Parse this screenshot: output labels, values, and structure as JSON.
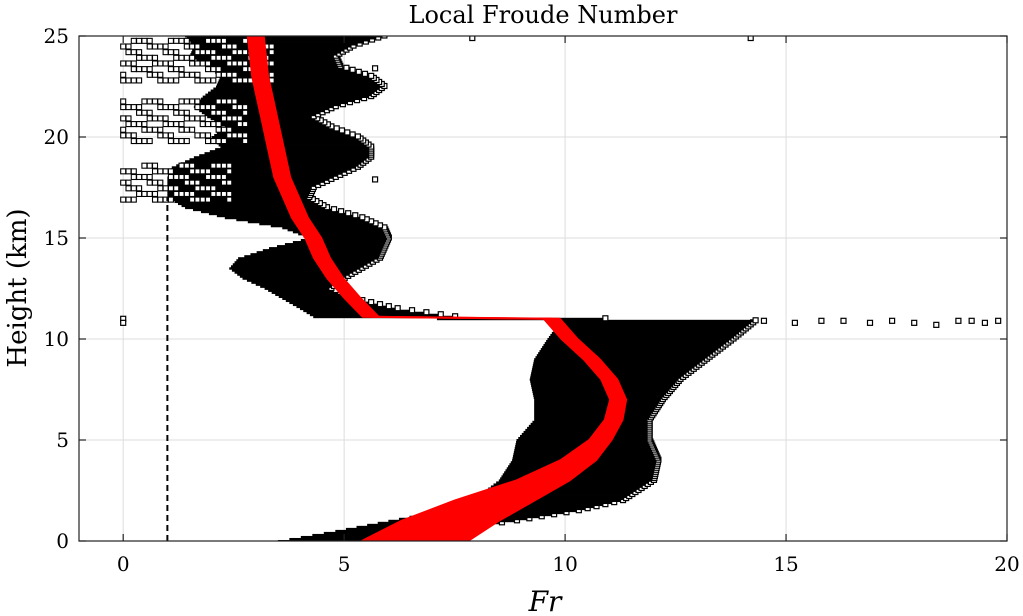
{
  "chart_data": {
    "type": "scatter",
    "title": "Local Froude Number",
    "xlabel": "Fr",
    "ylabel": "Height (km)",
    "xlim": [
      -1,
      20
    ],
    "ylim": [
      0,
      25
    ],
    "xticks": [
      0,
      5,
      10,
      15,
      20
    ],
    "yticks": [
      0,
      5,
      10,
      15,
      20,
      25
    ],
    "grid": true,
    "colors": {
      "markers": "#000000",
      "mean_profile": "#ff0000",
      "reference_line": "#000000"
    },
    "reference_line": {
      "x": 1,
      "style": "dashed"
    },
    "series": [
      {
        "marker": "open-square",
        "envelope_low": {
          "y": [
            0,
            0.5,
            1,
            1.5,
            2,
            3,
            4,
            5,
            6,
            7,
            8,
            9,
            10,
            10.9,
            11.1,
            11.5,
            12,
            12.5,
            13,
            13.5,
            14,
            14.5,
            15,
            15.5,
            16,
            16.5,
            17,
            17.5,
            18,
            18.5,
            19,
            19.5,
            20,
            20.5,
            21,
            21.5,
            22,
            22.5,
            23,
            23.5,
            24,
            24.5,
            25
          ],
          "x": [
            3.5,
            4.8,
            6.0,
            7.2,
            7.9,
            8.5,
            8.8,
            8.9,
            9.3,
            9.3,
            9.2,
            9.3,
            9.6,
            9.9,
            4.3,
            4.0,
            3.6,
            3.2,
            2.7,
            2.4,
            2.6,
            3.3,
            4.2,
            3.6,
            2.3,
            1.4,
            1.0,
            1.0,
            1.0,
            1.1,
            1.6,
            2.2,
            2.0,
            2.3,
            1.9,
            1.6,
            1.8,
            2.1,
            2.2,
            1.9,
            1.5,
            1.6,
            1.4
          ]
        },
        "envelope_high": {
          "y": [
            0,
            0.5,
            1,
            1.5,
            2,
            3,
            4,
            5,
            6,
            7,
            8,
            9,
            10,
            10.9,
            11.1,
            11.5,
            12,
            12.5,
            13,
            13.5,
            14,
            14.5,
            15,
            15.5,
            16,
            16.5,
            17,
            17.5,
            18,
            18.5,
            19,
            19.5,
            20,
            20.5,
            21,
            21.5,
            22,
            22.5,
            23,
            23.5,
            24,
            24.5,
            25
          ],
          "x": [
            5.8,
            7.2,
            8.9,
            10.3,
            11.3,
            12.0,
            12.1,
            11.9,
            11.9,
            12.2,
            12.6,
            13.2,
            13.8,
            14.3,
            7.5,
            6.2,
            5.2,
            4.7,
            5.0,
            5.4,
            5.8,
            5.9,
            6.0,
            5.9,
            5.4,
            4.6,
            4.2,
            4.3,
            4.8,
            5.3,
            5.6,
            5.6,
            5.3,
            4.7,
            4.3,
            4.8,
            5.6,
            5.9,
            5.6,
            4.9,
            4.8,
            5.2,
            5.9
          ]
        },
        "outliers": [
          {
            "x": 14.5,
            "y": 10.9
          },
          {
            "x": 15.2,
            "y": 10.8
          },
          {
            "x": 15.8,
            "y": 10.9
          },
          {
            "x": 16.3,
            "y": 10.9
          },
          {
            "x": 16.9,
            "y": 10.8
          },
          {
            "x": 17.4,
            "y": 10.9
          },
          {
            "x": 17.9,
            "y": 10.8
          },
          {
            "x": 18.4,
            "y": 10.7
          },
          {
            "x": 18.9,
            "y": 10.9
          },
          {
            "x": 19.2,
            "y": 10.9
          },
          {
            "x": 19.5,
            "y": 10.8
          },
          {
            "x": 19.8,
            "y": 10.9
          },
          {
            "x": 0,
            "y": 11.0
          },
          {
            "x": 0,
            "y": 10.8
          },
          {
            "x": 7.9,
            "y": 24.9
          },
          {
            "x": 14.2,
            "y": 24.9
          },
          {
            "x": 5.7,
            "y": 23.4
          },
          {
            "x": 5.7,
            "y": 17.9
          }
        ],
        "low_fr_bands": [
          {
            "y_start": 16.9,
            "y_end": 18.7,
            "x_start": 0,
            "x_end": 2.5
          },
          {
            "y_start": 19.8,
            "y_end": 22.0,
            "x_start": 0,
            "x_end": 2.8
          },
          {
            "y_start": 22.8,
            "y_end": 25.0,
            "x_start": 0,
            "x_end": 3.4
          }
        ]
      },
      {
        "marker": "red-band",
        "center": {
          "y": [
            0,
            1,
            2,
            3,
            4,
            5,
            6,
            7,
            8,
            9,
            10,
            11,
            11.1,
            12,
            13,
            14,
            15,
            16,
            17,
            18,
            19,
            20,
            21,
            22,
            23,
            24,
            25
          ],
          "x": [
            6.6,
            7.4,
            8.4,
            9.5,
            10.3,
            10.8,
            11.1,
            11.2,
            11.0,
            10.6,
            10.1,
            9.7,
            5.6,
            5.2,
            4.8,
            4.5,
            4.3,
            4.0,
            3.8,
            3.6,
            3.5,
            3.4,
            3.3,
            3.2,
            3.1,
            3.05,
            3.0
          ]
        },
        "width": {
          "y": [
            0,
            1,
            2,
            3,
            4,
            5,
            6,
            7,
            8,
            9,
            10,
            11,
            25
          ],
          "w": [
            1.2,
            1.1,
            0.9,
            0.6,
            0.4,
            0.25,
            0.2,
            0.18,
            0.18,
            0.18,
            0.18,
            0.18,
            0.18
          ]
        }
      }
    ]
  }
}
